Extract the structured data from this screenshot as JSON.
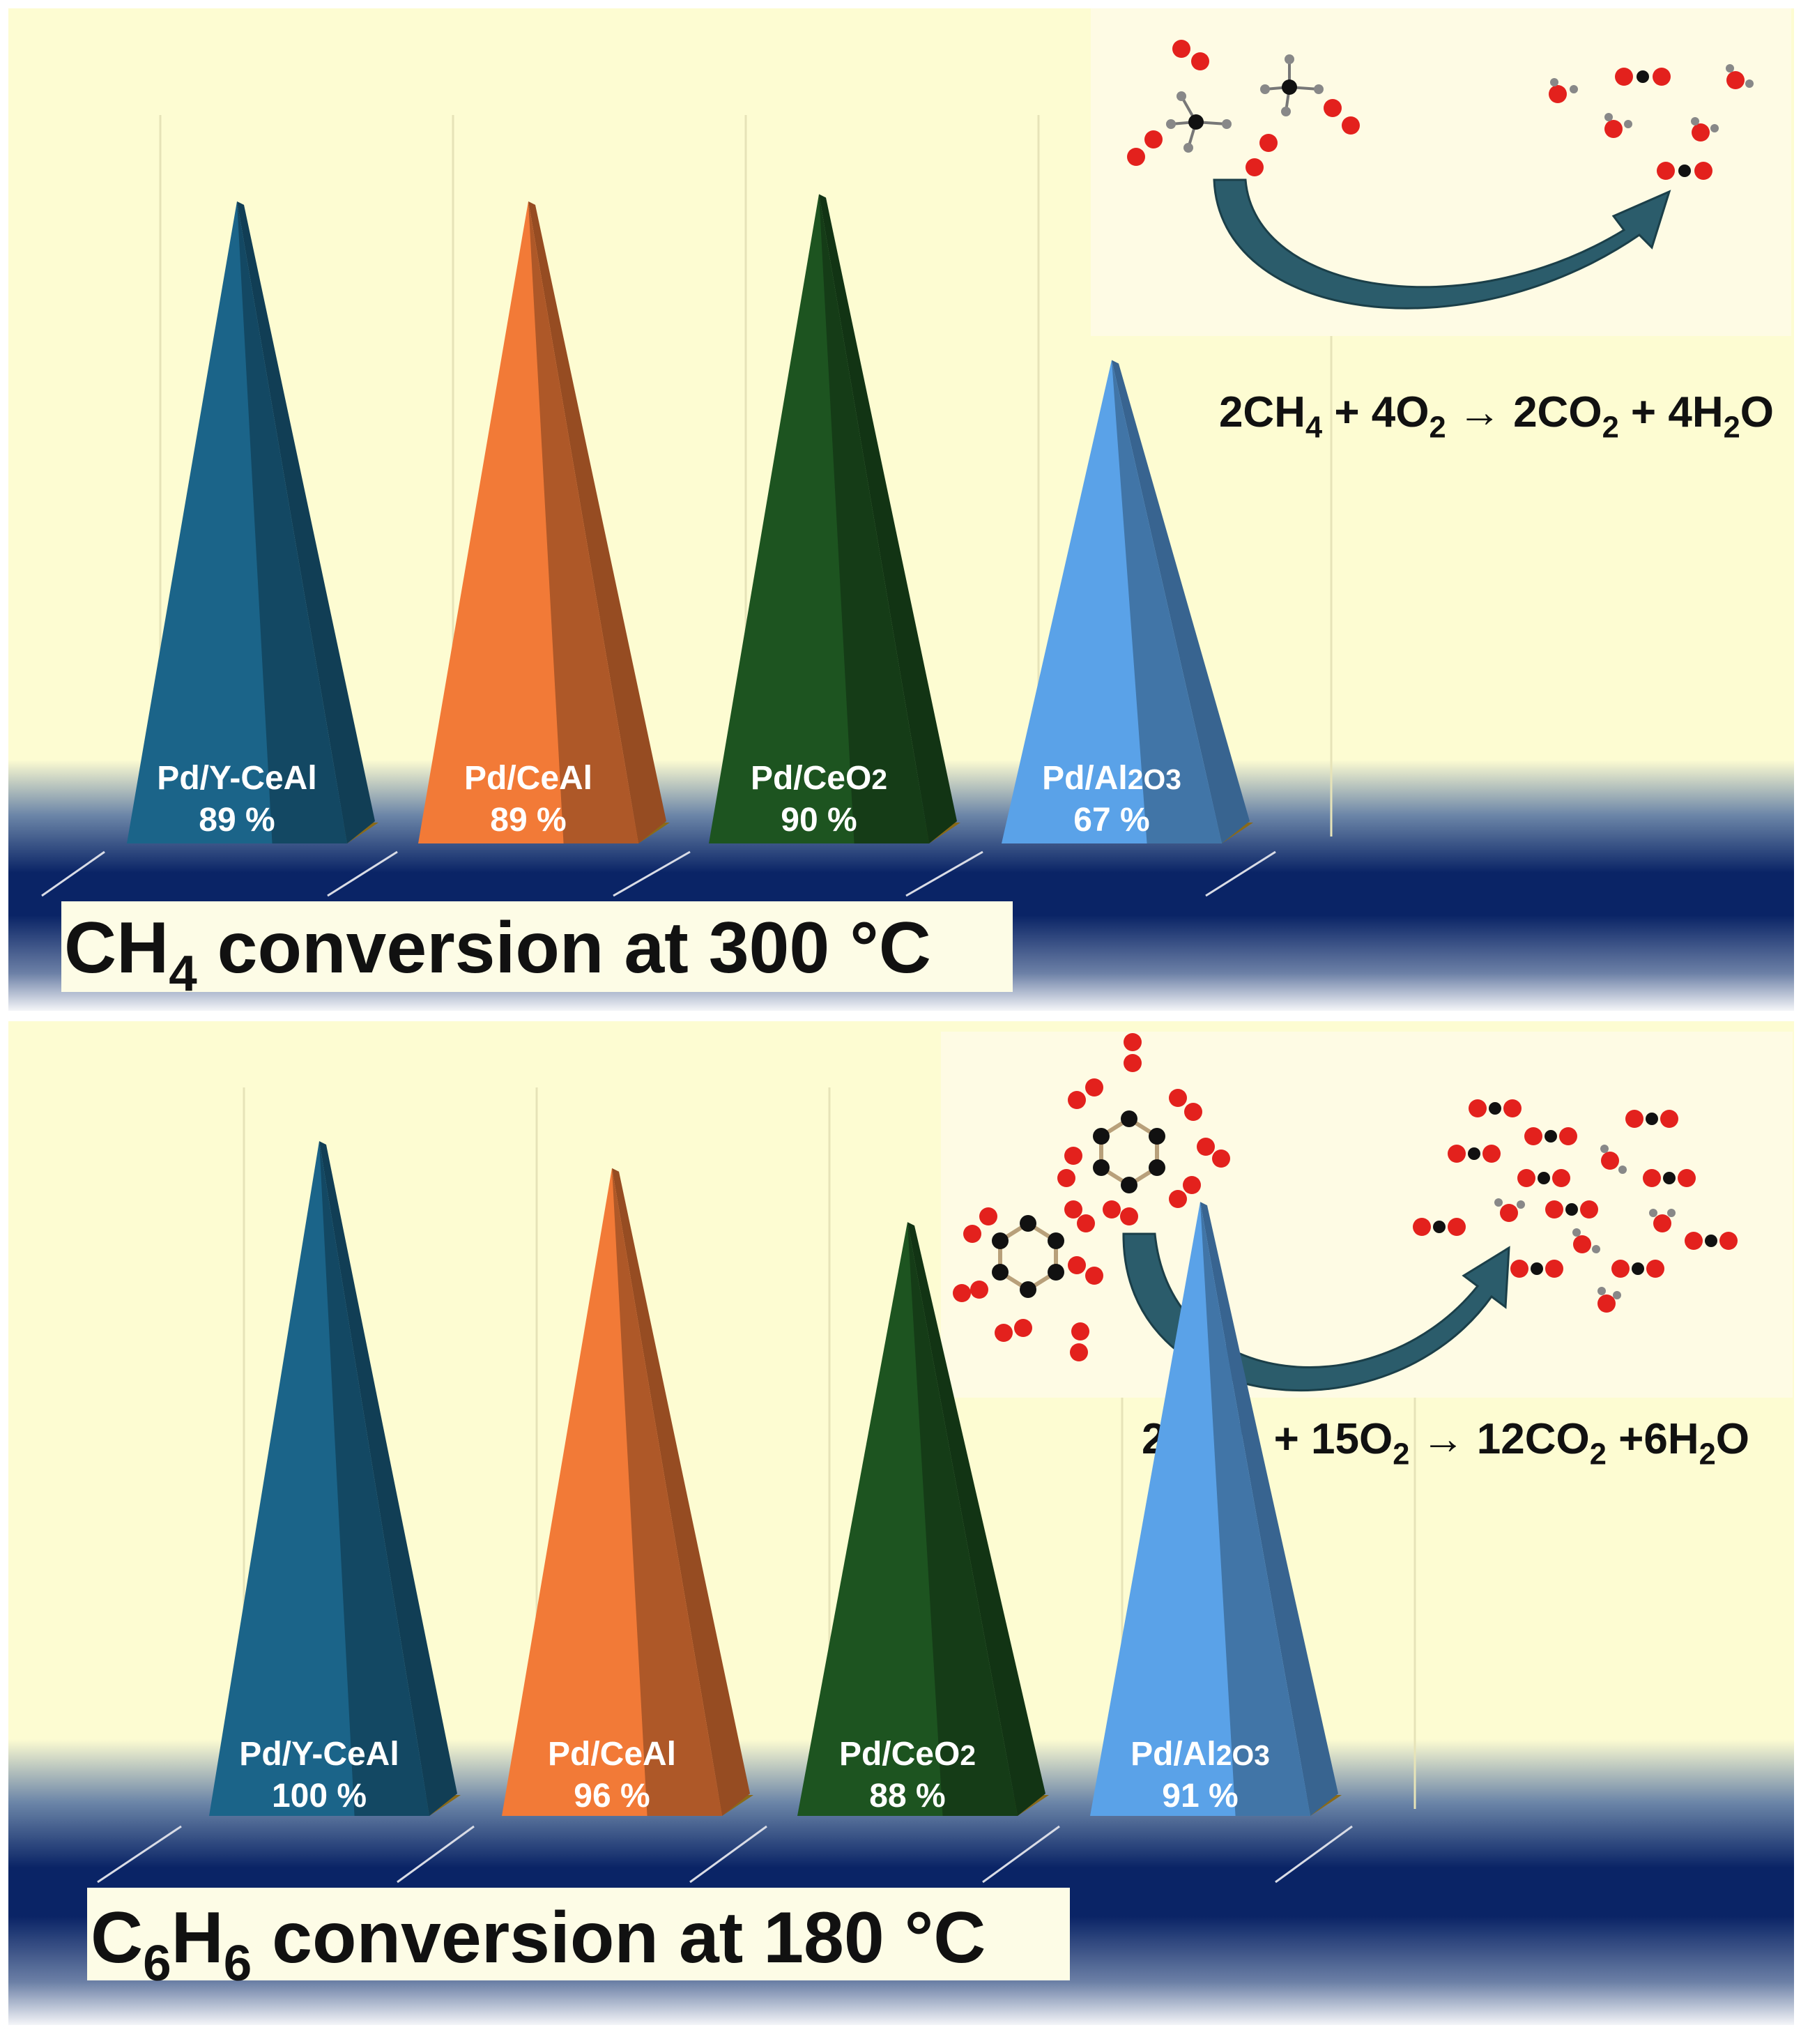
{
  "colors": {
    "background": "#FDFCD2",
    "floor_dark": "#0A2466",
    "grid": "#E6E3B8",
    "series": [
      "#1B6489",
      "#F27A37",
      "#1D5420",
      "#5AA2E8"
    ]
  },
  "chart_data": [
    {
      "type": "bar",
      "bar_shape": "pyramid",
      "title_main": "CH",
      "title_sub": "4",
      "title_rest": " conversion at 300 °C",
      "equation": {
        "parts": [
          {
            "t": "2CH",
            "s": false
          },
          {
            "t": "4",
            "s": true
          },
          {
            "t": " + 4O",
            "s": false
          },
          {
            "t": "2",
            "s": true
          },
          {
            "t": " → 2CO",
            "s": false
          },
          {
            "t": "2",
            "s": true
          },
          {
            "t": " + 4H",
            "s": false
          },
          {
            "t": "2",
            "s": true
          },
          {
            "t": "O",
            "s": false
          }
        ]
      },
      "categories": [
        {
          "name": "Pd/Y-CeAl",
          "sub": "",
          "tail": ""
        },
        {
          "name": "Pd/CeAl",
          "sub": "",
          "tail": ""
        },
        {
          "name": "Pd/CeO",
          "sub": "2",
          "tail": ""
        },
        {
          "name": "Pd/Al",
          "sub": "2",
          "tail": "O3"
        }
      ],
      "values": [
        89,
        89,
        90,
        67
      ],
      "value_labels": [
        "89 %",
        "89 %",
        "90 %",
        "67 %"
      ],
      "ylim": [
        0,
        100
      ],
      "grid": true,
      "legend": "none"
    },
    {
      "type": "bar",
      "bar_shape": "pyramid",
      "title_main": "C",
      "title_sub": "6",
      "title_mid": "H",
      "title_sub2": "6",
      "title_rest": " conversion at 180 °C",
      "equation": {
        "parts": [
          {
            "t": "2C",
            "s": false
          },
          {
            "t": "6",
            "s": true
          },
          {
            "t": "H",
            "s": false
          },
          {
            "t": "6",
            "s": true
          },
          {
            "t": " + 15O",
            "s": false
          },
          {
            "t": "2",
            "s": true
          },
          {
            "t": " → 12CO",
            "s": false
          },
          {
            "t": "2",
            "s": true
          },
          {
            "t": " +6H",
            "s": false
          },
          {
            "t": "2",
            "s": true
          },
          {
            "t": "O",
            "s": false
          }
        ]
      },
      "categories": [
        {
          "name": "Pd/Y-CeAl",
          "sub": "",
          "tail": ""
        },
        {
          "name": "Pd/CeAl",
          "sub": "",
          "tail": ""
        },
        {
          "name": "Pd/CeO",
          "sub": "2",
          "tail": ""
        },
        {
          "name": "Pd/Al",
          "sub": "2",
          "tail": "O3"
        }
      ],
      "values": [
        100,
        96,
        88,
        91
      ],
      "value_labels": [
        "100 %",
        "96 %",
        "88 %",
        "91 %"
      ],
      "ylim": [
        0,
        100
      ],
      "grid": true,
      "legend": "none"
    }
  ]
}
